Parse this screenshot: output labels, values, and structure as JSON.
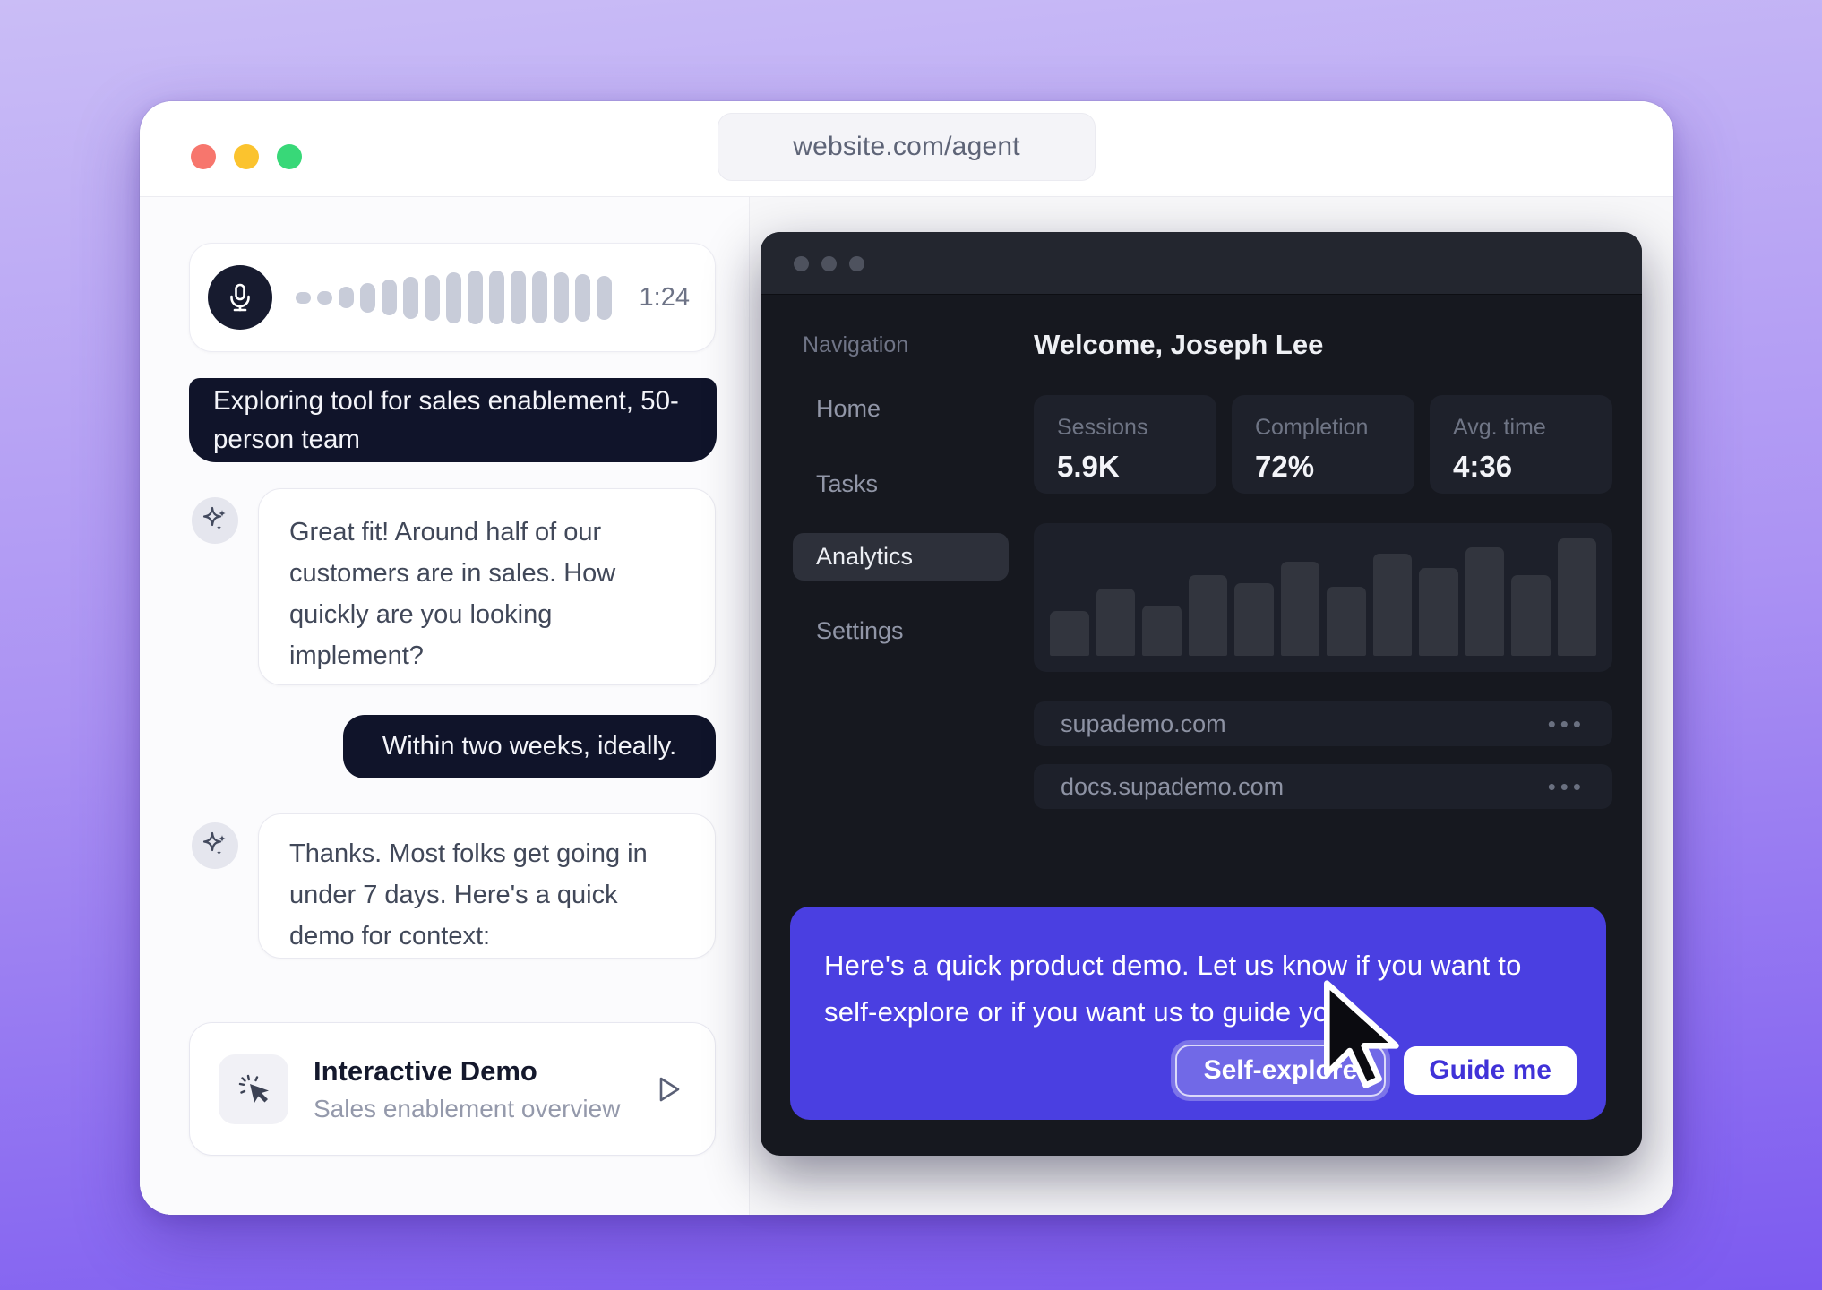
{
  "browser": {
    "url": "website.com/agent",
    "window_controls": [
      "close",
      "minimize",
      "zoom"
    ],
    "traffic_colors": {
      "red": "#f7766d",
      "yellow": "#fbc32e",
      "green": "#38d878"
    }
  },
  "chat": {
    "voice": {
      "duration": "1:24",
      "bars": [
        13,
        15,
        24,
        33,
        40,
        47,
        51,
        57,
        60,
        60,
        60,
        58,
        56,
        53,
        49
      ]
    },
    "messages": [
      {
        "role": "user",
        "text": "Exploring tool for sales enablement, 50-person team"
      },
      {
        "role": "ai",
        "text": "Great fit! Around half of our customers are in sales. How quickly are you looking implement?"
      },
      {
        "role": "user",
        "text": "Within two weeks, ideally."
      },
      {
        "role": "ai",
        "text": "Thanks. Most folks get going in under 7 days. Here's a quick demo for context:"
      }
    ],
    "demo_card": {
      "title": "Interactive Demo",
      "subtitle": "Sales enablement overview"
    }
  },
  "app": {
    "sidebar": {
      "heading": "Navigation",
      "items": [
        {
          "label": "Home",
          "active": false
        },
        {
          "label": "Tasks",
          "active": false
        },
        {
          "label": "Analytics",
          "active": true
        },
        {
          "label": "Settings",
          "active": false
        }
      ]
    },
    "welcome": "Welcome, Joseph Lee",
    "stats": [
      {
        "label": "Sessions",
        "value": "5.9K"
      },
      {
        "label": "Completion",
        "value": "72%"
      },
      {
        "label": "Avg. time",
        "value": "4:36"
      }
    ],
    "chart_data": {
      "type": "bar",
      "values": [
        50,
        75,
        56,
        90,
        81,
        105,
        77,
        114,
        98,
        121,
        90,
        131
      ],
      "title": "",
      "xlabel": "",
      "ylabel": "",
      "notes": "unlabeled sparkline-style bar chart, heights in px as rendered"
    },
    "domains": [
      {
        "name": "supademo.com",
        "menu": "•••"
      },
      {
        "name": "docs.supademo.com",
        "menu": "•••"
      }
    ],
    "overlay": {
      "message": "Here's a quick product demo. Let us know if you want to self-explore or if you want us to guide you.",
      "self_explore_label": "Self-explore",
      "guide_me_label": "Guide me",
      "accent_color": "#4a3fe1"
    }
  }
}
